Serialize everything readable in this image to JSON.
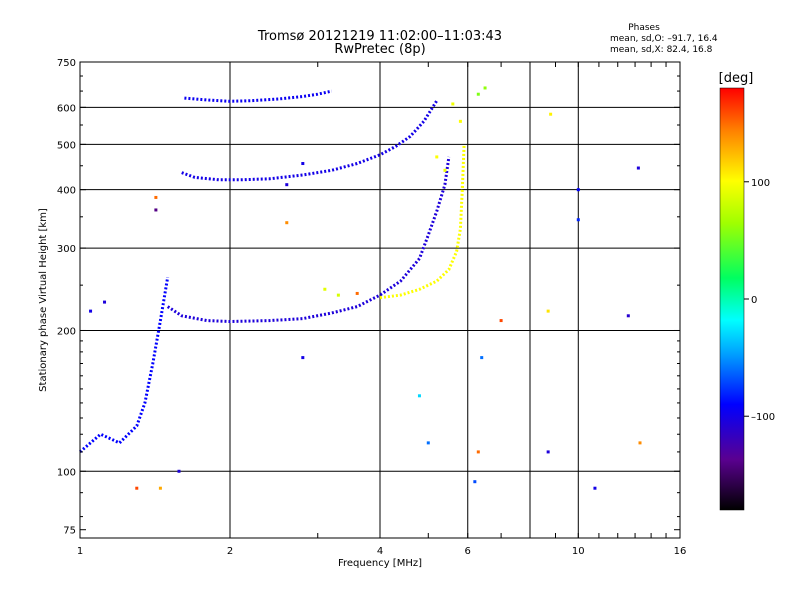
{
  "chart_data": {
    "type": "scatter",
    "title": "Tromsø 20121219 11:02:00–11:03:43",
    "subtitle": "RwPretec (8p)",
    "stats": {
      "heading": "Phases",
      "o_line": "mean, sd,O: –91.7, 16.4",
      "x_line": "mean, sd,X: 82.4, 16.8"
    },
    "xlabel": "Frequency [MHz]",
    "ylabel": "Stationary phase Virtual Height [km]",
    "x_scale": "log",
    "y_scale": "log",
    "xlim": [
      1,
      16
    ],
    "ylim": [
      72,
      750
    ],
    "x_ticks": [
      1,
      2,
      4,
      6,
      10,
      16
    ],
    "x_tick_labels": [
      "1",
      "2",
      "4",
      "6",
      "10",
      "16"
    ],
    "x_gridlines": [
      2,
      4,
      6,
      8,
      10
    ],
    "y_ticks": [
      75,
      100,
      200,
      300,
      400,
      500,
      600,
      750
    ],
    "y_tick_labels": [
      "75",
      "100",
      "200",
      "300",
      "400",
      "500",
      "600",
      "750"
    ],
    "y_gridlines": [
      100,
      200,
      300,
      400,
      500,
      600
    ],
    "grid": true,
    "colorbar": {
      "label": "[deg]",
      "range": [
        -180,
        180
      ],
      "ticks": [
        100,
        0,
        -100
      ],
      "tick_labels": [
        "100",
        "0",
        "–100"
      ]
    },
    "traces": [
      {
        "phase_deg": -95,
        "x": [
          1.62,
          1.8,
          2.0,
          2.2,
          2.5,
          2.8,
          3.0,
          3.2
        ],
        "y": [
          628,
          622,
          618,
          620,
          625,
          633,
          640,
          650
        ]
      },
      {
        "phase_deg": -100,
        "x": [
          1.6,
          1.7,
          1.9,
          2.1,
          2.4,
          2.8,
          3.2,
          3.6,
          4.0,
          4.3,
          4.6,
          4.9,
          5.2
        ],
        "y": [
          435,
          425,
          420,
          420,
          422,
          430,
          440,
          455,
          475,
          495,
          520,
          560,
          620
        ]
      },
      {
        "phase_deg": -105,
        "x": [
          1.5,
          1.6,
          1.8,
          2.0,
          2.4,
          2.8,
          3.2,
          3.6,
          4.0,
          4.4,
          4.8,
          5.0,
          5.2,
          5.4,
          5.5
        ],
        "y": [
          225,
          215,
          210,
          209,
          210,
          212,
          218,
          225,
          238,
          255,
          285,
          320,
          360,
          410,
          470
        ]
      },
      {
        "phase_deg": 100,
        "x": [
          4.0,
          4.4,
          4.8,
          5.2,
          5.5,
          5.7,
          5.8,
          5.85,
          5.9
        ],
        "y": [
          235,
          238,
          245,
          255,
          270,
          295,
          330,
          400,
          500
        ]
      },
      {
        "phase_deg": -90,
        "x": [
          1.0,
          1.1,
          1.2,
          1.3,
          1.35,
          1.4,
          1.45,
          1.5
        ],
        "y": [
          110,
          120,
          115,
          125,
          140,
          170,
          210,
          260
        ]
      }
    ],
    "scatter_points": [
      {
        "x": 5.6,
        "y": 610,
        "phase_deg": 95
      },
      {
        "x": 6.3,
        "y": 640,
        "phase_deg": 55
      },
      {
        "x": 5.8,
        "y": 560,
        "phase_deg": 100
      },
      {
        "x": 3.1,
        "y": 245,
        "phase_deg": 90
      },
      {
        "x": 3.3,
        "y": 238,
        "phase_deg": 85
      },
      {
        "x": 1.42,
        "y": 385,
        "phase_deg": 150
      },
      {
        "x": 1.42,
        "y": 362,
        "phase_deg": -140
      },
      {
        "x": 2.6,
        "y": 340,
        "phase_deg": 140
      },
      {
        "x": 3.6,
        "y": 240,
        "phase_deg": 150
      },
      {
        "x": 7.0,
        "y": 210,
        "phase_deg": 160
      },
      {
        "x": 8.7,
        "y": 220,
        "phase_deg": 110
      },
      {
        "x": 8.8,
        "y": 580,
        "phase_deg": 105
      },
      {
        "x": 13.2,
        "y": 445,
        "phase_deg": -105
      },
      {
        "x": 12.6,
        "y": 215,
        "phase_deg": -110
      },
      {
        "x": 13.3,
        "y": 115,
        "phase_deg": 140
      },
      {
        "x": 8.7,
        "y": 110,
        "phase_deg": -105
      },
      {
        "x": 10.8,
        "y": 92,
        "phase_deg": -100
      },
      {
        "x": 6.2,
        "y": 95,
        "phase_deg": -70
      },
      {
        "x": 1.3,
        "y": 92,
        "phase_deg": 160
      },
      {
        "x": 1.45,
        "y": 92,
        "phase_deg": 130
      },
      {
        "x": 1.58,
        "y": 100,
        "phase_deg": -105
      },
      {
        "x": 5.0,
        "y": 115,
        "phase_deg": -60
      },
      {
        "x": 4.8,
        "y": 145,
        "phase_deg": -30
      },
      {
        "x": 6.3,
        "y": 110,
        "phase_deg": 150
      },
      {
        "x": 6.4,
        "y": 175,
        "phase_deg": -60
      },
      {
        "x": 2.8,
        "y": 175,
        "phase_deg": -100
      },
      {
        "x": 2.6,
        "y": 410,
        "phase_deg": -105
      },
      {
        "x": 2.8,
        "y": 455,
        "phase_deg": -100
      },
      {
        "x": 1.05,
        "y": 220,
        "phase_deg": -100
      },
      {
        "x": 1.12,
        "y": 230,
        "phase_deg": -105
      },
      {
        "x": 10.0,
        "y": 400,
        "phase_deg": -90
      },
      {
        "x": 10.0,
        "y": 345,
        "phase_deg": -80
      },
      {
        "x": 6.5,
        "y": 660,
        "phase_deg": 60
      },
      {
        "x": 5.4,
        "y": 440,
        "phase_deg": 95
      },
      {
        "x": 5.2,
        "y": 470,
        "phase_deg": 100
      }
    ]
  }
}
